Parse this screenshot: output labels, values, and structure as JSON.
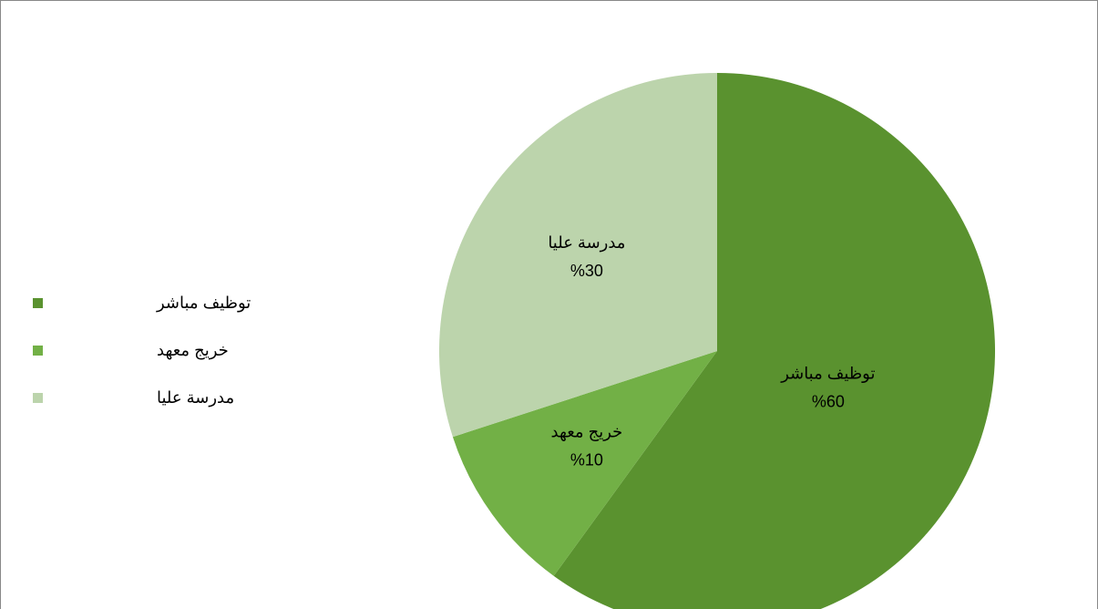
{
  "chart_data": {
    "type": "pie",
    "categories": [
      "توظيف مباشر",
      "خريج معهد",
      "مدرسة عليا"
    ],
    "series": [
      {
        "colors": [
          "#5a922f",
          "#72b046",
          "#bcd4ac"
        ],
        "values": [
          60,
          10,
          30
        ],
        "value_labels": [
          "%60",
          "%10",
          "%30"
        ]
      }
    ],
    "legend": "left"
  }
}
